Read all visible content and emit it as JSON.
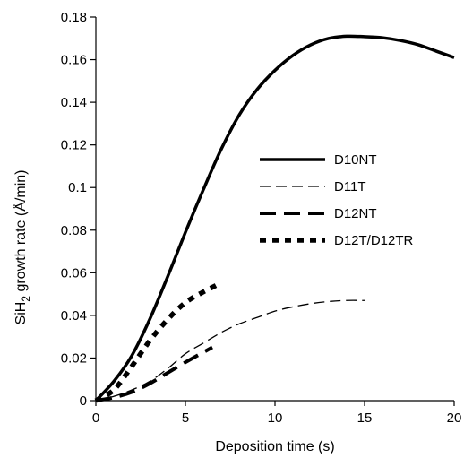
{
  "chart_data": {
    "type": "line",
    "xlabel": "Deposition time (s)",
    "ylabel": "SiH2 growth rate (Å/min)",
    "ylabel_parts": {
      "prefix": "SiH",
      "subscript": "2",
      "suffix": " growth rate (Å/min)"
    },
    "xlim": [
      0,
      20
    ],
    "ylim": [
      0,
      0.18
    ],
    "x_ticks": [
      0,
      5,
      10,
      15,
      20
    ],
    "x_tick_labels": [
      "0",
      "5",
      "10",
      "15",
      "20"
    ],
    "y_ticks": [
      0,
      0.02,
      0.04,
      0.06,
      0.08,
      0.1,
      0.12,
      0.14,
      0.16,
      0.18
    ],
    "y_tick_labels": [
      "0",
      "0.02",
      "0.04",
      "0.06",
      "0.08",
      "0.1",
      "0.12",
      "0.14",
      "0.16",
      "0.18"
    ],
    "grid": false,
    "legend_position": "center-right",
    "series": [
      {
        "name": "D10NT",
        "style": "solid-thick",
        "color": "#000000",
        "points": [
          [
            0,
            0
          ],
          [
            1,
            0.009
          ],
          [
            2,
            0.021
          ],
          [
            3,
            0.038
          ],
          [
            4,
            0.058
          ],
          [
            5,
            0.079
          ],
          [
            6,
            0.099
          ],
          [
            7,
            0.118
          ],
          [
            8,
            0.134
          ],
          [
            9,
            0.146
          ],
          [
            10,
            0.155
          ],
          [
            11,
            0.162
          ],
          [
            12,
            0.167
          ],
          [
            13,
            0.17
          ],
          [
            14,
            0.171
          ],
          [
            15,
            0.1708
          ],
          [
            16,
            0.1703
          ],
          [
            17,
            0.169
          ],
          [
            18,
            0.167
          ],
          [
            19,
            0.164
          ],
          [
            20,
            0.161
          ]
        ]
      },
      {
        "name": "D11T",
        "style": "dashed-thin",
        "color": "#000000",
        "points": [
          [
            0,
            0
          ],
          [
            1,
            0.002
          ],
          [
            2,
            0.005
          ],
          [
            3,
            0.009
          ],
          [
            4,
            0.015
          ],
          [
            5,
            0.022
          ],
          [
            6,
            0.027
          ],
          [
            7,
            0.032
          ],
          [
            8,
            0.036
          ],
          [
            9,
            0.039
          ],
          [
            10,
            0.042
          ],
          [
            11,
            0.044
          ],
          [
            12,
            0.0455
          ],
          [
            13,
            0.0465
          ],
          [
            14,
            0.047
          ],
          [
            15,
            0.047
          ]
        ]
      },
      {
        "name": "D12NT",
        "style": "long-dash-thick",
        "color": "#000000",
        "points": [
          [
            0,
            0
          ],
          [
            1,
            0.0015
          ],
          [
            2,
            0.004
          ],
          [
            3,
            0.008
          ],
          [
            4,
            0.013
          ],
          [
            5,
            0.018
          ],
          [
            6.5,
            0.025
          ]
        ]
      },
      {
        "name": "D12T/D12TR",
        "style": "short-dash-thick",
        "color": "#000000",
        "points": [
          [
            0,
            0
          ],
          [
            1,
            0.005
          ],
          [
            2,
            0.016
          ],
          [
            3,
            0.028
          ],
          [
            4,
            0.038
          ],
          [
            5,
            0.046
          ],
          [
            6,
            0.051
          ],
          [
            6.7,
            0.054
          ]
        ]
      }
    ]
  }
}
